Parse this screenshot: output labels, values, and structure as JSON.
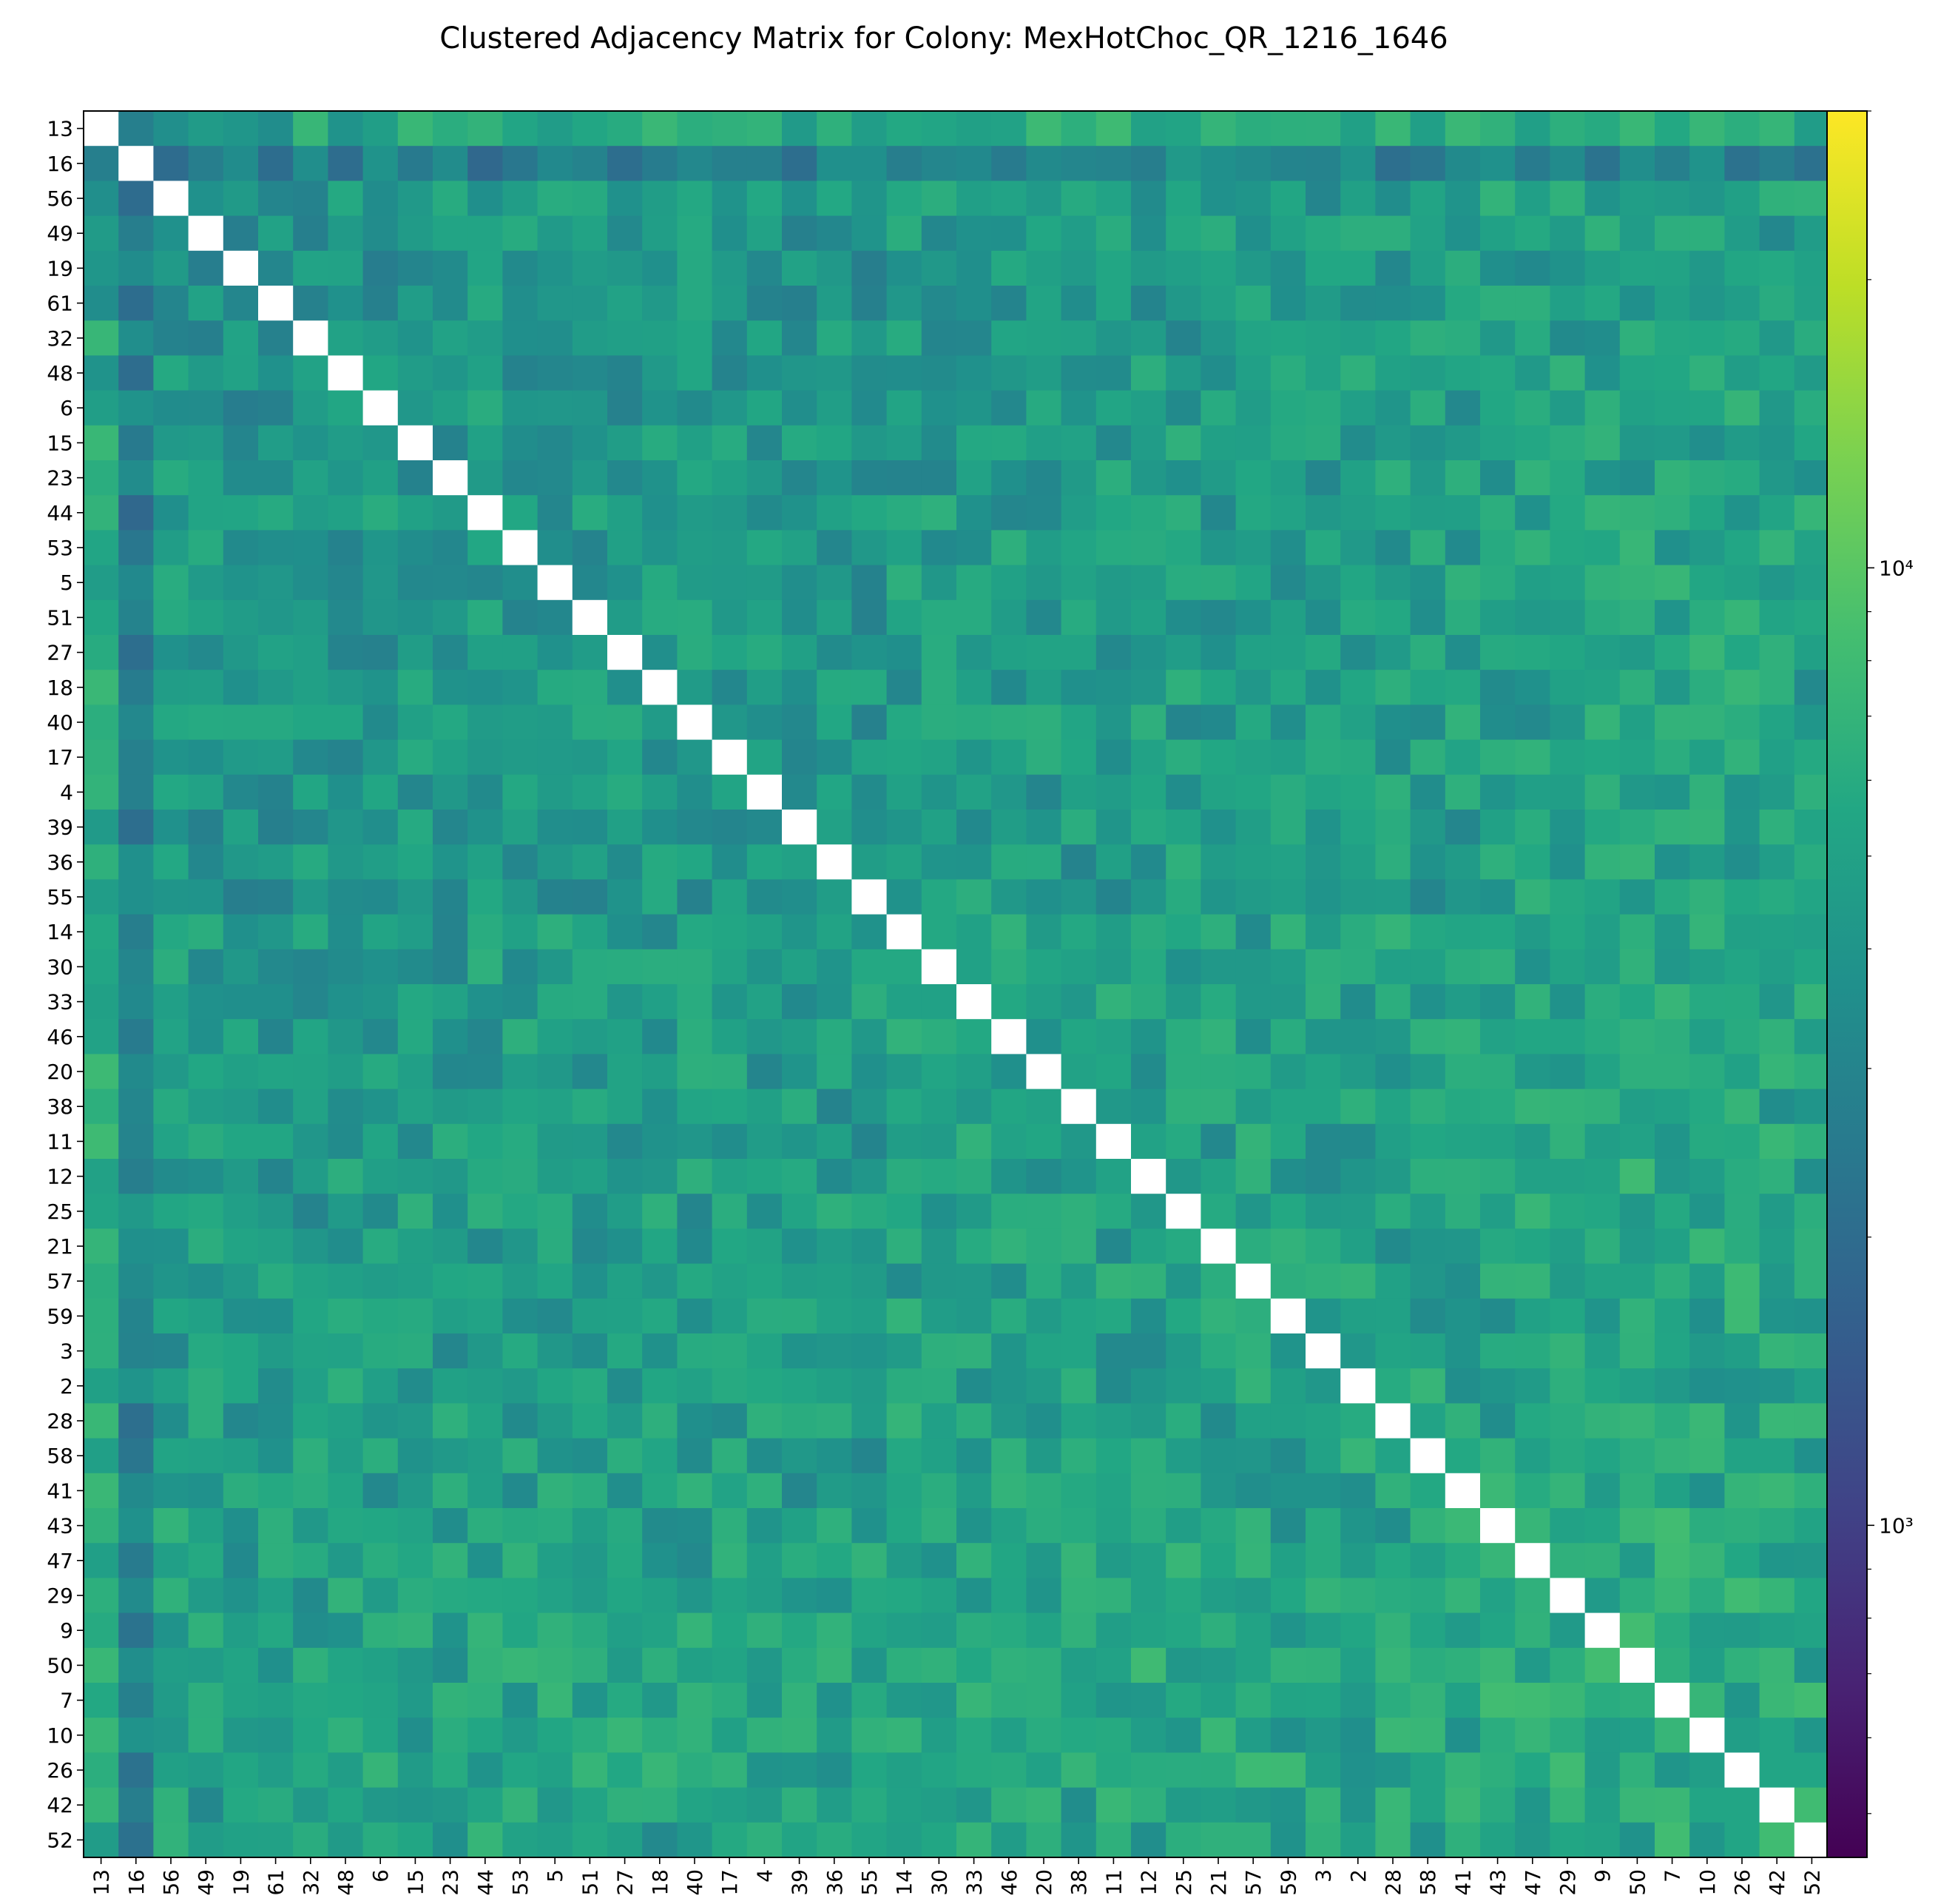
{
  "chart_data": {
    "type": "heatmap",
    "title": "Clustered Adjacency Matrix for Colony: MexHotChoc_QR_1216_1646",
    "xlabel": "",
    "ylabel": "",
    "labels": [
      "13",
      "16",
      "56",
      "49",
      "19",
      "61",
      "32",
      "48",
      "6",
      "15",
      "23",
      "44",
      "53",
      "5",
      "51",
      "27",
      "18",
      "40",
      "17",
      "4",
      "39",
      "36",
      "55",
      "14",
      "30",
      "33",
      "46",
      "20",
      "38",
      "11",
      "12",
      "25",
      "21",
      "57",
      "59",
      "3",
      "2",
      "28",
      "58",
      "41",
      "43",
      "47",
      "29",
      "9",
      "50",
      "7",
      "10",
      "26",
      "42",
      "52"
    ],
    "color_scale": "log",
    "colormap": "viridis",
    "vmin": 450,
    "vmax": 30000,
    "colorbar_ticks": [
      {
        "value": 1000,
        "label": "10³"
      },
      {
        "value": 10000,
        "label": "10⁴"
      }
    ],
    "diagonal": "blank",
    "row_scale": [
      6800,
      1900,
      4600,
      4300,
      4000,
      4000,
      4300,
      4300,
      4300,
      4700,
      4200,
      4700,
      4500,
      4500,
      4500,
      4500,
      4500,
      4500,
      4400,
      4300,
      4400,
      4700,
      4300,
      5000,
      4900,
      5000,
      4900,
      5100,
      4800,
      5000,
      5200,
      5200,
      5000,
      5200,
      5100,
      5000,
      5300,
      5400,
      5300,
      5500,
      5500,
      5900,
      5800,
      5800,
      6400,
      6400,
      6300,
      6300,
      6000,
      5800
    ],
    "values_description": "Symmetric pairwise interaction counts between 50 colony members; color encodes count on log scale (~450 to ~30000); values mostly ~3000-9000, row 16 lowest (~1000-2500), row 13 highest (~5000-12000)."
  }
}
